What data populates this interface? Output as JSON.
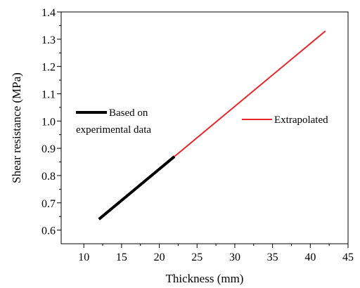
{
  "chart_data": {
    "type": "line",
    "title": "",
    "xlabel": "Thickness (mm)",
    "ylabel": "Shear resistance (MPa)",
    "xlim": [
      7,
      45
    ],
    "ylim": [
      0.55,
      1.4
    ],
    "xticks": [
      10,
      15,
      20,
      25,
      30,
      35,
      40,
      45
    ],
    "yticks": [
      0.6,
      0.7,
      0.8,
      0.9,
      1.0,
      1.1,
      1.2,
      1.3,
      1.4
    ],
    "xtick_labels": [
      "10",
      "15",
      "20",
      "25",
      "30",
      "35",
      "40",
      "45"
    ],
    "ytick_labels": [
      "0.6",
      "0.7",
      "0.8",
      "0.9",
      "1.0",
      "1.1",
      "1.2",
      "1.3",
      "1.4"
    ],
    "grid": false,
    "series": [
      {
        "name": "Based on experimental data",
        "legend_lines": [
          "Based on",
          "experimental data"
        ],
        "color": "#000000",
        "x": [
          12,
          22
        ],
        "y": [
          0.64,
          0.87
        ]
      },
      {
        "name": "Extrapolated",
        "legend_lines": [
          "Extrapolated"
        ],
        "color": "#e8282b",
        "x": [
          22,
          42
        ],
        "y": [
          0.87,
          1.33
        ]
      }
    ]
  }
}
